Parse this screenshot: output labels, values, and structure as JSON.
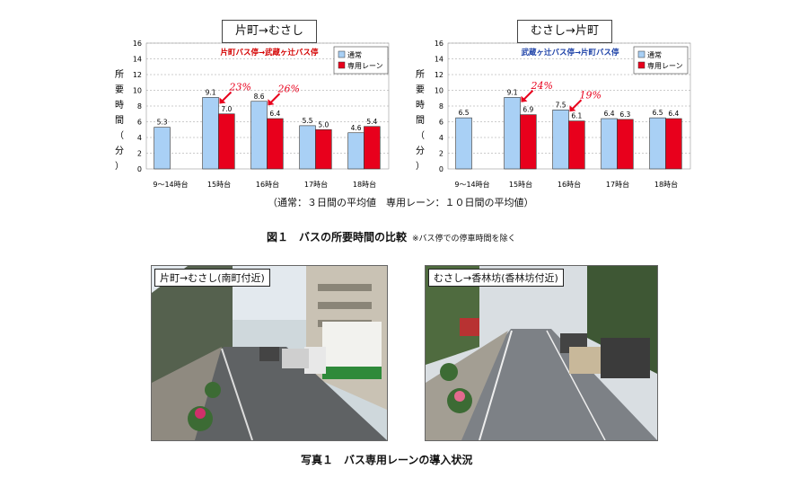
{
  "chart_data": [
    {
      "type": "bar",
      "box_title": "片町→むさし",
      "subtitle": "片町バス停→武蔵ヶ辻バス停",
      "subtitle_color": "#d40000",
      "ylabel": "所要時間（分）",
      "ylim": [
        0,
        16
      ],
      "yticks": [
        0,
        2,
        4,
        6,
        8,
        10,
        12,
        14,
        16
      ],
      "categories": [
        "9～14時台",
        "15時台",
        "16時台",
        "17時台",
        "18時台"
      ],
      "series": [
        {
          "name": "通常",
          "color": "#a9d0f5",
          "values": [
            5.3,
            9.1,
            8.6,
            5.5,
            4.6
          ]
        },
        {
          "name": "専用レーン",
          "color": "#e8001c",
          "values": [
            null,
            7.0,
            6.4,
            5.0,
            5.4
          ]
        }
      ],
      "value_labels": [
        [
          "5.3",
          "9.1",
          "8.6",
          "5.5",
          "4.6"
        ],
        [
          "",
          "7.0",
          "6.4",
          "5.0",
          "5.4"
        ]
      ],
      "annotations": [
        {
          "text": "23%",
          "category": 1,
          "y": 10.0
        },
        {
          "text": "26%",
          "category": 2,
          "y": 9.8
        }
      ],
      "legend": "top-right"
    },
    {
      "type": "bar",
      "box_title": "むさし→片町",
      "subtitle": "武蔵ヶ辻バス停→片町バス停",
      "subtitle_color": "#1a3fa6",
      "ylabel": "所要時間（分）",
      "ylim": [
        0,
        16
      ],
      "yticks": [
        0,
        2,
        4,
        6,
        8,
        10,
        12,
        14,
        16
      ],
      "categories": [
        "9～14時台",
        "15時台",
        "16時台",
        "17時台",
        "18時台"
      ],
      "series": [
        {
          "name": "通常",
          "color": "#a9d0f5",
          "values": [
            6.5,
            9.1,
            7.5,
            6.4,
            6.5
          ]
        },
        {
          "name": "専用レーン",
          "color": "#e8001c",
          "values": [
            null,
            6.9,
            6.1,
            6.3,
            6.4
          ]
        }
      ],
      "value_labels": [
        [
          "6.5",
          "9.1",
          "7.5",
          "6.4",
          "6.5"
        ],
        [
          "",
          "6.9",
          "6.1",
          "6.3",
          "6.4"
        ]
      ],
      "annotations": [
        {
          "text": "24%",
          "category": 1,
          "y": 10.2
        },
        {
          "text": "19%",
          "category": 2,
          "y": 9.0
        }
      ],
      "legend": "top-right"
    }
  ],
  "note": "（通常：３日間の平均値　専用レーン：１０日間の平均値）",
  "figure_caption": "図１　バスの所要時間の比較",
  "figure_note": "※バス停での停車時間を除く",
  "photos": [
    {
      "label": "片町→むさし(南町付近)"
    },
    {
      "label": "むさし→香林坊(香林坊付近)"
    }
  ],
  "photo_caption": "写真１　バス専用レーンの導入状況"
}
